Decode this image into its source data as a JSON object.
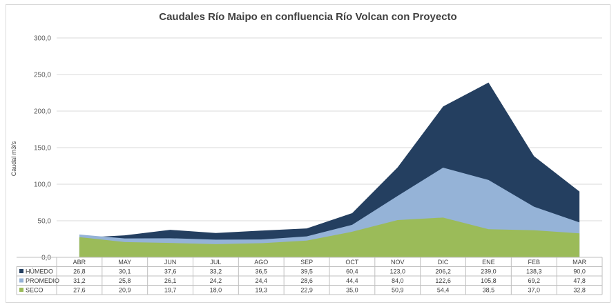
{
  "chart_data": {
    "type": "area",
    "title": "Caudales Río Maipo en confluencia Río Volcan con Proyecto",
    "ylabel": "Caudal m3/s",
    "xlabel": "",
    "ylim": [
      0,
      300
    ],
    "yticks": [
      "0,0",
      "50,0",
      "100,0",
      "150,0",
      "200,0",
      "250,0",
      "300,0"
    ],
    "categories": [
      "ABR",
      "MAY",
      "JUN",
      "JUL",
      "AGO",
      "SEP",
      "OCT",
      "NOV",
      "DIC",
      "ENE",
      "FEB",
      "MAR"
    ],
    "legend": "data-table",
    "grid": "horizontal",
    "series": [
      {
        "name": "HÚMEDO",
        "color": "#243f60",
        "values": [
          26.8,
          30.1,
          37.6,
          33.2,
          36.5,
          39.5,
          60.4,
          123.0,
          206.2,
          239.0,
          138.3,
          90.0
        ],
        "labels": [
          "26,8",
          "30,1",
          "37,6",
          "33,2",
          "36,5",
          "39,5",
          "60,4",
          "123,0",
          "206,2",
          "239,0",
          "138,3",
          "90,0"
        ]
      },
      {
        "name": "PROMEDIO",
        "color": "#95b3d7",
        "values": [
          31.2,
          25.8,
          26.1,
          24.2,
          24.4,
          28.6,
          44.4,
          84.0,
          122.6,
          105.8,
          69.2,
          47.8
        ],
        "labels": [
          "31,2",
          "25,8",
          "26,1",
          "24,2",
          "24,4",
          "28,6",
          "44,4",
          "84,0",
          "122,6",
          "105,8",
          "69,2",
          "47,8"
        ]
      },
      {
        "name": "SECO",
        "color": "#9bbb59",
        "values": [
          27.6,
          20.9,
          19.7,
          18.0,
          19.3,
          22.9,
          35.0,
          50.9,
          54.4,
          38.5,
          37.0,
          32.8
        ],
        "labels": [
          "27,6",
          "20,9",
          "19,7",
          "18,0",
          "19,3",
          "22,9",
          "35,0",
          "50,9",
          "54,4",
          "38,5",
          "37,0",
          "32,8"
        ]
      }
    ]
  }
}
